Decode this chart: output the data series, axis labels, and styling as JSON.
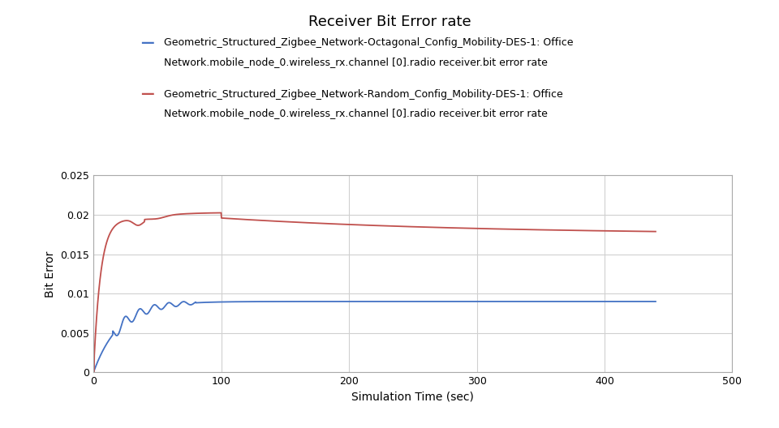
{
  "title": "Receiver Bit Error rate",
  "xlabel": "Simulation Time (sec)",
  "ylabel": "Bit Error",
  "xlim": [
    0,
    500
  ],
  "ylim": [
    0,
    0.025
  ],
  "xticks": [
    0,
    100,
    200,
    300,
    400,
    500
  ],
  "yticks": [
    0,
    0.005,
    0.01,
    0.015,
    0.02,
    0.025
  ],
  "blue_label_line1": "Geometric_Structured_Zigbee_Network-Octagonal_Config_Mobility-DES-1: Office",
  "blue_label_line2": "Network.mobile_node_0.wireless_rx.channel [0].radio receiver.bit error rate",
  "red_label_line1": "Geometric_Structured_Zigbee_Network-Random_Config_Mobility-DES-1: Office",
  "red_label_line2": "Network.mobile_node_0.wireless_rx.channel [0].radio receiver.bit error rate",
  "blue_color": "#4472C4",
  "red_color": "#C0504D",
  "background_color": "#ffffff",
  "grid_color": "#d0d0d0",
  "title_fontsize": 13,
  "label_fontsize": 10,
  "legend_fontsize": 9
}
